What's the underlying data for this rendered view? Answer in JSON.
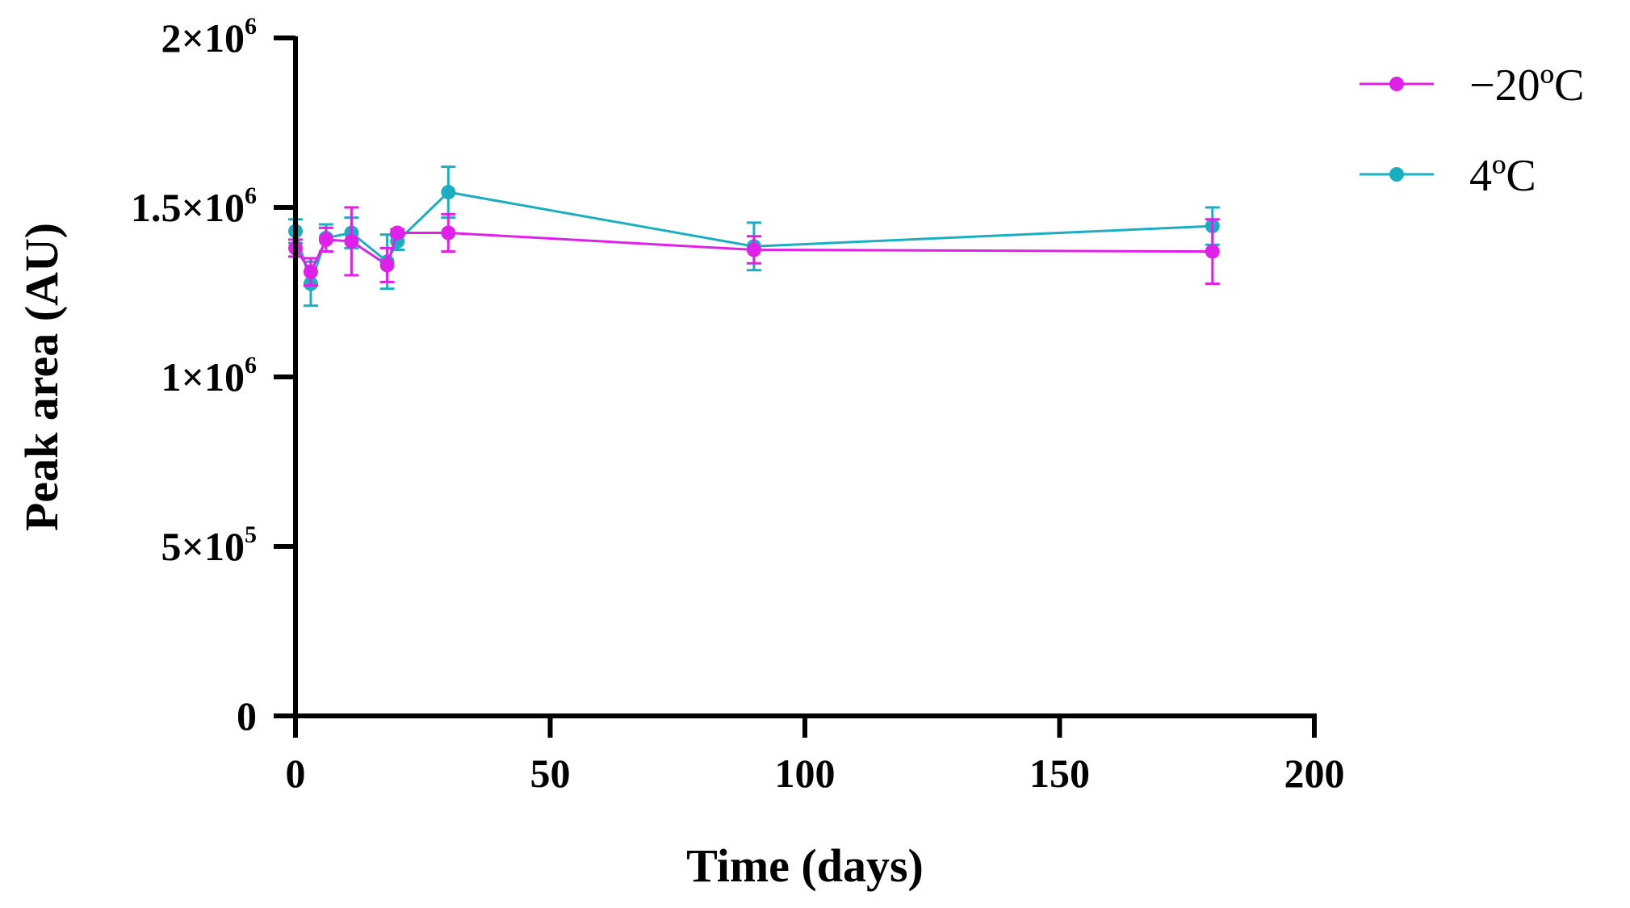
{
  "chart_data": {
    "type": "line",
    "title": "",
    "xlabel": "Time (days)",
    "ylabel": "Peak area (AU)",
    "xlim": [
      0,
      200
    ],
    "ylim": [
      0,
      2000000
    ],
    "x_ticks": [
      0,
      50,
      100,
      150,
      200
    ],
    "x_tick_labels": [
      "0",
      "50",
      "100",
      "150",
      "200"
    ],
    "y_ticks": [
      {
        "value": 0,
        "base": "0",
        "exp": ""
      },
      {
        "value": 500000,
        "base": "5×10",
        "exp": "5"
      },
      {
        "value": 1000000,
        "base": "1×10",
        "exp": "6"
      },
      {
        "value": 1500000,
        "base": "1.5×10",
        "exp": "6"
      },
      {
        "value": 2000000,
        "base": "2×10",
        "exp": "6"
      }
    ],
    "grid": false,
    "legend_position": "top-right",
    "series": [
      {
        "name": "4ºC",
        "color": "#1AAFC0",
        "x": [
          0,
          3,
          6,
          11,
          18,
          20,
          30,
          90,
          180
        ],
        "y": [
          1430000,
          1275000,
          1410000,
          1425000,
          1340000,
          1400000,
          1545000,
          1385000,
          1445000
        ],
        "err": [
          35000,
          65000,
          40000,
          45000,
          80000,
          25000,
          75000,
          70000,
          55000
        ]
      },
      {
        "name": "−20ºC",
        "color": "#E020E8",
        "x": [
          0,
          3,
          6,
          11,
          18,
          20,
          30,
          90,
          180
        ],
        "y": [
          1380000,
          1310000,
          1405000,
          1400000,
          1330000,
          1425000,
          1425000,
          1375000,
          1370000
        ],
        "err": [
          25000,
          40000,
          35000,
          100000,
          50000,
          10000,
          55000,
          40000,
          95000
        ]
      }
    ],
    "legend": [
      {
        "name": "−20ºC",
        "color": "#E020E8"
      },
      {
        "name": "4ºC",
        "color": "#1AAFC0"
      }
    ]
  }
}
